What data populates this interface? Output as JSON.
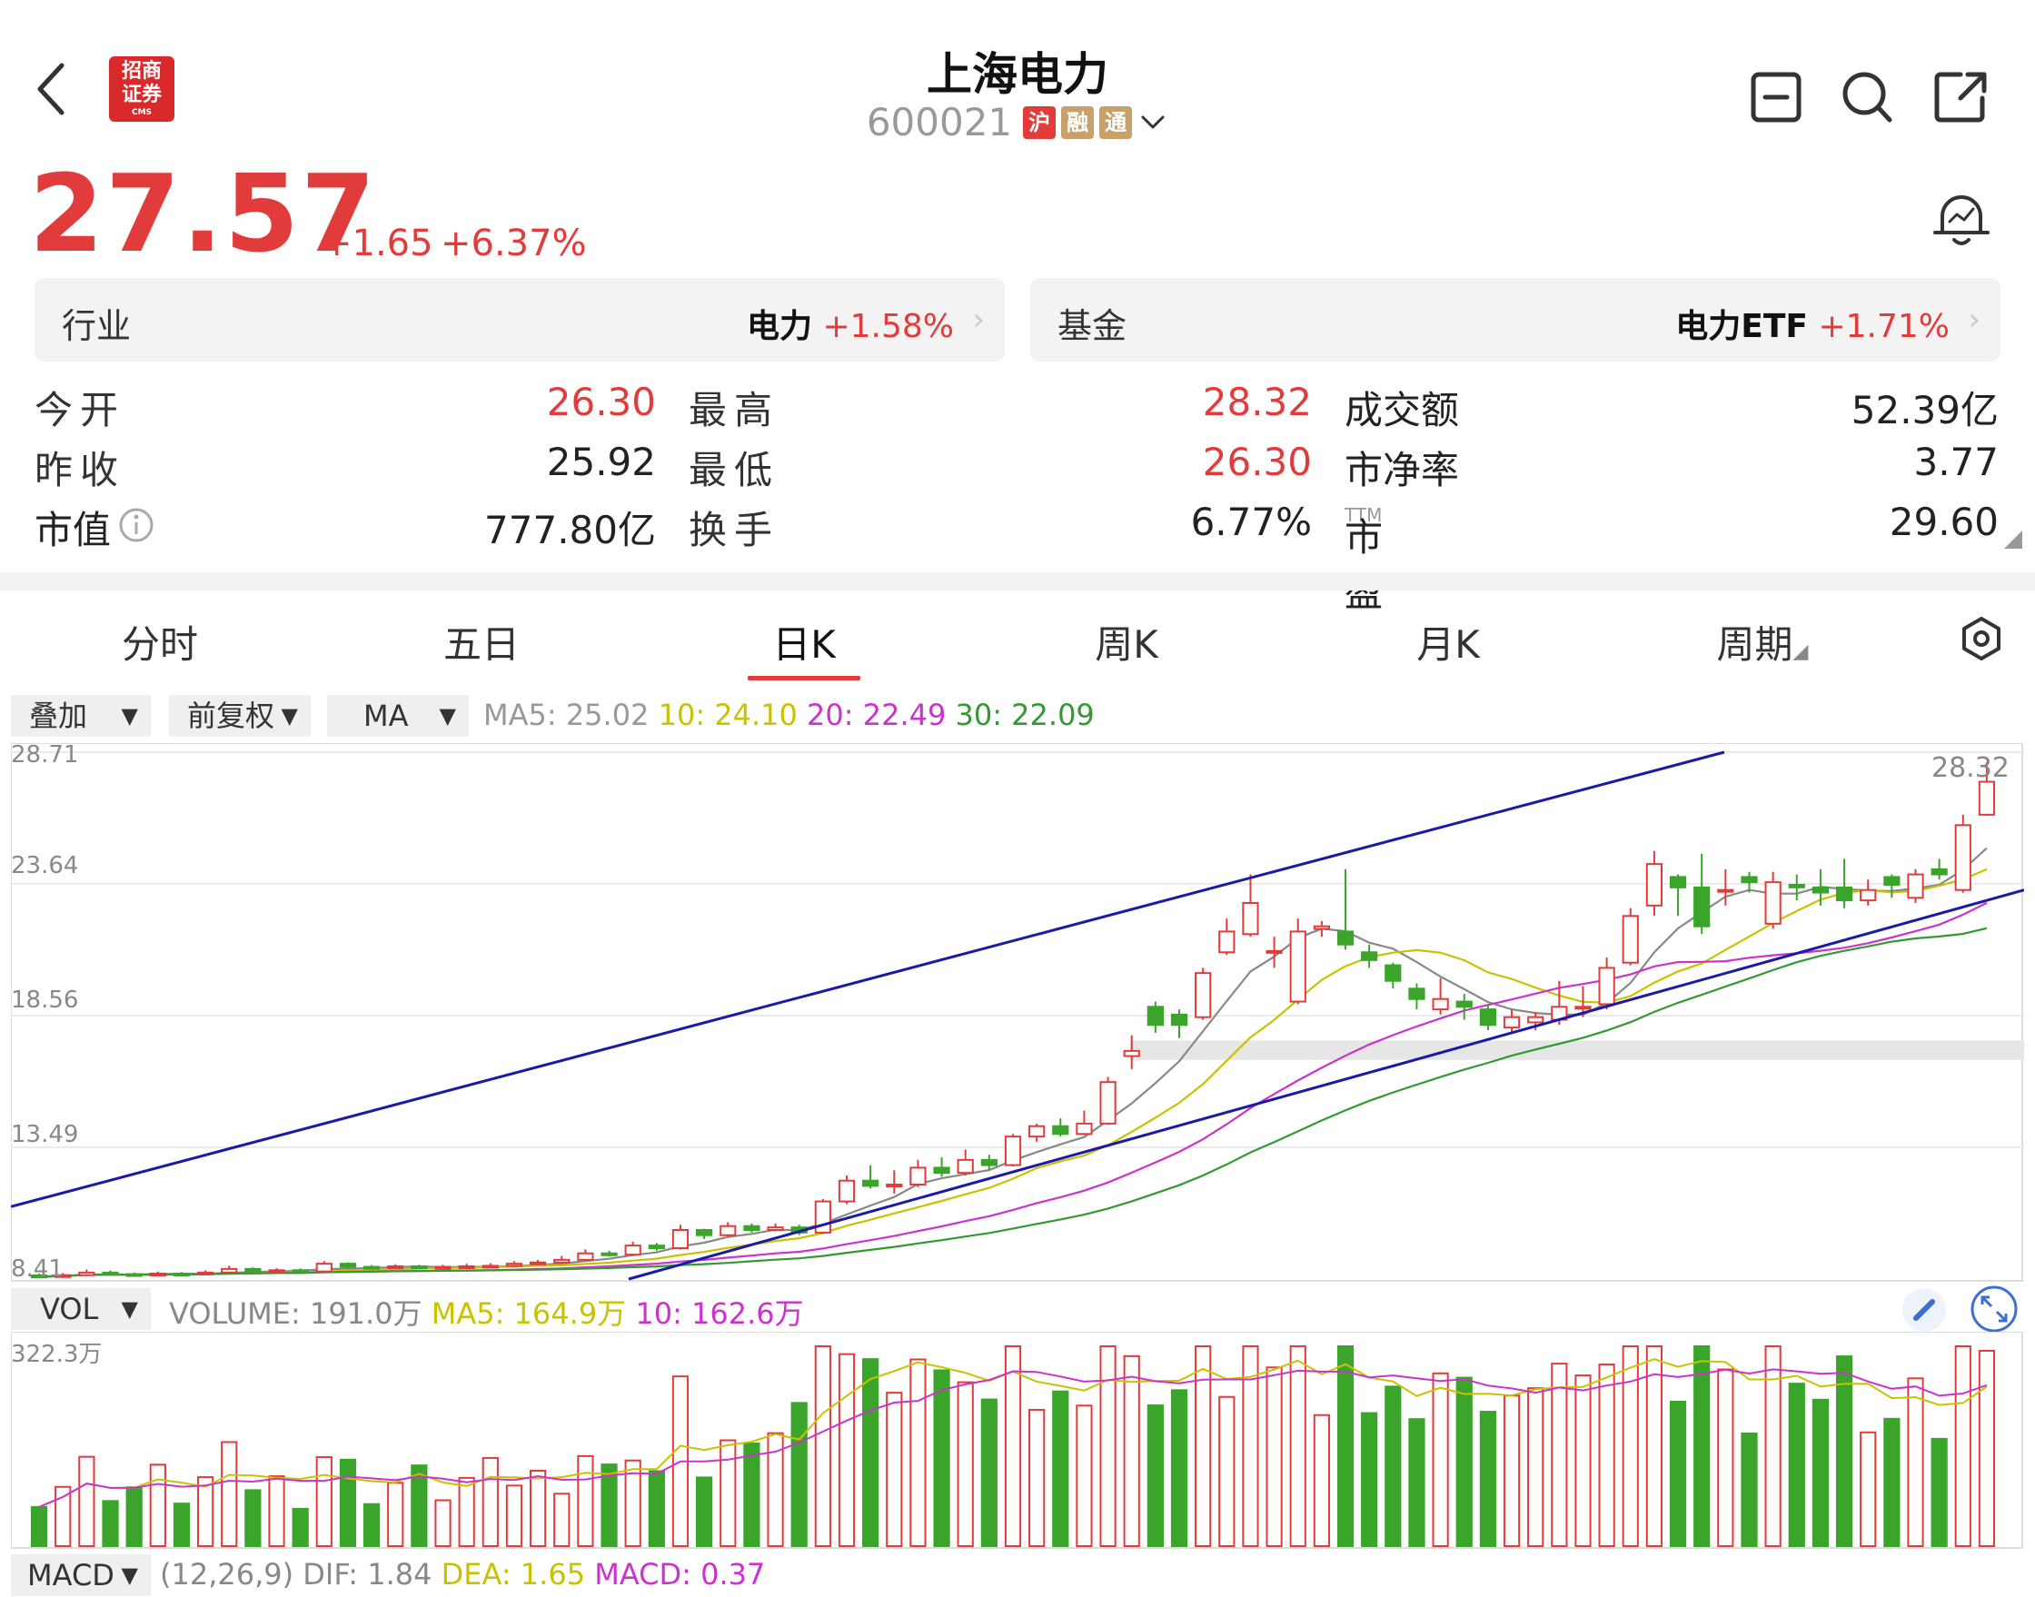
{
  "header": {
    "title": "上海电力",
    "code": "600021",
    "badges": [
      {
        "text": "沪",
        "color": "#e23b3b"
      },
      {
        "text": "融",
        "color": "#c8a06a"
      },
      {
        "text": "通",
        "color": "#c8a06a"
      }
    ],
    "logo_text": "招商证券",
    "logo_sub": "CMS"
  },
  "quote": {
    "price": "27.57",
    "change": "+1.65",
    "change_pct": "+6.37%"
  },
  "industry": {
    "label": "行业",
    "name": "电力",
    "change": "+1.58%"
  },
  "fund": {
    "label": "基金",
    "name": "电力ETF",
    "change": "+1.71%"
  },
  "stats": {
    "open_label": "今开",
    "open": "26.30",
    "high_label": "最高",
    "high": "28.32",
    "amount_label": "成交额",
    "amount": "52.39亿",
    "prev_label": "昨收",
    "prev": "25.92",
    "low_label": "最低",
    "low": "26.30",
    "pb_label": "市净率",
    "pb": "3.77",
    "mcap_label": "市值",
    "mcap": "777.80亿",
    "turnover_label": "换手",
    "turnover": "6.77%",
    "pe_label": "市盈",
    "pe_suffix": "TTM",
    "pe": "29.60"
  },
  "tabs": [
    "分时",
    "五日",
    "日K",
    "周K",
    "月K",
    "周期"
  ],
  "active_tab": 2,
  "selectors": {
    "overlay": "叠加",
    "adjust": "前复权",
    "indicator": "MA",
    "vol": "VOL",
    "macd": "MACD"
  },
  "ma_legend": {
    "ma5": "MA5: 25.02",
    "ma10": "10: 24.10",
    "ma20": "20: 22.49",
    "ma30": "30: 22.09",
    "colors": {
      "ma5": "#888888",
      "ma10": "#c9c200",
      "ma20": "#cc33cc",
      "ma30": "#339933"
    }
  },
  "vol_legend": {
    "volume": "VOLUME: 191.0万",
    "ma5": "MA5: 164.9万",
    "ma10": "10: 162.6万"
  },
  "macd_legend": {
    "params": "(12,26,9)",
    "dif": "DIF: 1.84",
    "dea": "DEA: 1.65",
    "macd": "MACD: 0.37"
  },
  "axis_labels": {
    "y1": "28.71",
    "y2": "23.64",
    "y3": "18.56",
    "y4": "13.49",
    "y5": "8.41",
    "max_mark": "28.32",
    "vol_max": "322.3万"
  },
  "colors": {
    "up": "#e23b3b",
    "down": "#3aa52a",
    "trendline": "#1a1aa8"
  },
  "chart_data": {
    "type": "candlestick",
    "ylim": [
      8.41,
      28.71
    ],
    "candles": [
      [
        8.55,
        8.5,
        8.62,
        8.44
      ],
      [
        8.5,
        8.56,
        8.64,
        8.46
      ],
      [
        8.56,
        8.66,
        8.78,
        8.52
      ],
      [
        8.66,
        8.6,
        8.74,
        8.55
      ],
      [
        8.6,
        8.58,
        8.66,
        8.52
      ],
      [
        8.58,
        8.62,
        8.7,
        8.54
      ],
      [
        8.62,
        8.6,
        8.68,
        8.55
      ],
      [
        8.6,
        8.66,
        8.74,
        8.56
      ],
      [
        8.66,
        8.8,
        8.92,
        8.62
      ],
      [
        8.8,
        8.72,
        8.86,
        8.66
      ],
      [
        8.72,
        8.75,
        8.83,
        8.68
      ],
      [
        8.75,
        8.7,
        8.82,
        8.65
      ],
      [
        8.7,
        9.0,
        9.1,
        8.68
      ],
      [
        9.0,
        8.88,
        9.05,
        8.8
      ],
      [
        8.88,
        8.85,
        8.95,
        8.78
      ],
      [
        8.85,
        8.9,
        8.98,
        8.8
      ],
      [
        8.9,
        8.85,
        8.96,
        8.8
      ],
      [
        8.85,
        8.88,
        8.96,
        8.8
      ],
      [
        8.88,
        8.9,
        9.0,
        8.82
      ],
      [
        8.9,
        8.92,
        9.02,
        8.84
      ],
      [
        8.92,
        9.0,
        9.1,
        8.86
      ],
      [
        9.0,
        9.05,
        9.15,
        8.95
      ],
      [
        9.05,
        9.15,
        9.3,
        9.0
      ],
      [
        9.15,
        9.4,
        9.55,
        9.1
      ],
      [
        9.4,
        9.35,
        9.5,
        9.28
      ],
      [
        9.35,
        9.7,
        9.85,
        9.3
      ],
      [
        9.7,
        9.6,
        9.8,
        9.5
      ],
      [
        9.6,
        10.3,
        10.5,
        9.55
      ],
      [
        10.3,
        10.1,
        10.35,
        9.95
      ],
      [
        10.1,
        10.45,
        10.6,
        10.05
      ],
      [
        10.45,
        10.3,
        10.55,
        10.2
      ],
      [
        10.3,
        10.4,
        10.55,
        10.25
      ],
      [
        10.4,
        10.2,
        10.5,
        10.1
      ],
      [
        10.2,
        11.4,
        11.5,
        10.15
      ],
      [
        11.4,
        12.2,
        12.4,
        11.3
      ],
      [
        12.2,
        12.0,
        12.8,
        11.9
      ],
      [
        12.0,
        12.05,
        12.6,
        11.7
      ],
      [
        12.05,
        12.7,
        13.0,
        11.95
      ],
      [
        12.7,
        12.5,
        13.1,
        12.35
      ],
      [
        12.5,
        13.0,
        13.4,
        12.4
      ],
      [
        13.0,
        12.8,
        13.2,
        12.6
      ],
      [
        12.8,
        13.9,
        14.0,
        12.75
      ],
      [
        13.9,
        14.3,
        14.4,
        13.7
      ],
      [
        14.3,
        14.0,
        14.6,
        13.9
      ],
      [
        14.0,
        14.4,
        14.9,
        13.95
      ],
      [
        14.4,
        16.0,
        16.2,
        14.35
      ],
      [
        17.0,
        17.2,
        17.8,
        16.5
      ],
      [
        18.9,
        18.2,
        19.1,
        17.9
      ],
      [
        18.6,
        18.2,
        18.8,
        17.7
      ],
      [
        18.5,
        20.2,
        20.4,
        18.4
      ],
      [
        21.0,
        21.8,
        22.3,
        20.9
      ],
      [
        21.7,
        22.9,
        24.0,
        21.6
      ],
      [
        21.0,
        21.05,
        21.6,
        20.4
      ],
      [
        19.1,
        21.8,
        22.3,
        19.0
      ],
      [
        21.9,
        22.0,
        22.2,
        21.6
      ],
      [
        21.8,
        21.3,
        24.2,
        21.1
      ],
      [
        21.0,
        20.7,
        21.3,
        20.4
      ],
      [
        20.5,
        19.9,
        20.6,
        19.6
      ],
      [
        19.6,
        19.2,
        19.8,
        18.8
      ],
      [
        18.8,
        19.2,
        20.0,
        18.6
      ],
      [
        19.1,
        18.9,
        19.4,
        18.4
      ],
      [
        18.8,
        18.2,
        19.0,
        18.0
      ],
      [
        18.1,
        18.5,
        18.8,
        17.9
      ],
      [
        18.3,
        18.5,
        18.7,
        18.0
      ],
      [
        18.4,
        18.9,
        19.9,
        18.2
      ],
      [
        18.9,
        18.9,
        19.7,
        18.5
      ],
      [
        19.0,
        20.4,
        20.8,
        18.8
      ],
      [
        20.6,
        22.4,
        22.7,
        20.5
      ],
      [
        22.8,
        24.4,
        24.9,
        22.4
      ],
      [
        23.9,
        23.5,
        24.0,
        22.4
      ],
      [
        23.5,
        22.0,
        24.8,
        21.7
      ],
      [
        23.4,
        23.4,
        24.2,
        22.8
      ],
      [
        23.9,
        23.7,
        24.1,
        23.3
      ],
      [
        22.1,
        23.7,
        24.1,
        21.9
      ],
      [
        23.6,
        23.5,
        24.0,
        23.0
      ],
      [
        23.5,
        23.3,
        24.2,
        22.8
      ],
      [
        23.5,
        23.0,
        24.6,
        22.7
      ],
      [
        23.0,
        23.4,
        23.8,
        22.8
      ],
      [
        23.9,
        23.6,
        24.0,
        23.1
      ],
      [
        23.1,
        24.0,
        24.2,
        22.9
      ],
      [
        24.2,
        24.0,
        24.6,
        23.8
      ],
      [
        23.4,
        25.9,
        26.3,
        23.3
      ],
      [
        26.3,
        27.57,
        28.32,
        26.3
      ]
    ]
  }
}
